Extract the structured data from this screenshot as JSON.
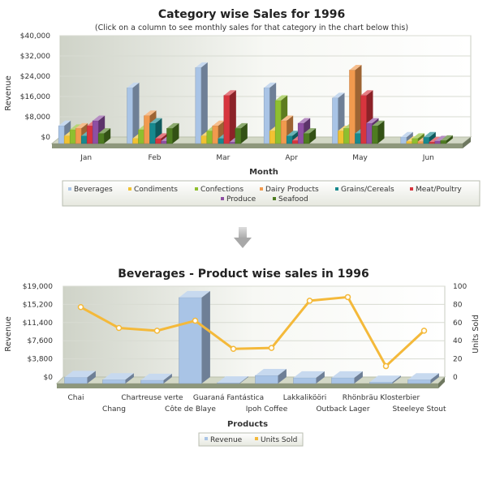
{
  "chart_data": [
    {
      "type": "bar",
      "title": "Category wise Sales for 1996",
      "subtitle": "(Click on a column to see monthly sales for that category in the chart below this)",
      "xlabel": "Month",
      "ylabel": "Revenue",
      "categories": [
        "Jan",
        "Feb",
        "Mar",
        "Apr",
        "May",
        "Jun"
      ],
      "y_ticks": [
        "$0",
        "$8,000",
        "$16,000",
        "$24,000",
        "$32,000",
        "$40,000"
      ],
      "ylim": [
        0,
        40000
      ],
      "legend_position": "bottom",
      "grid": true,
      "series": [
        {
          "name": "Beverages",
          "color": "#a9c4e6",
          "values": [
            7000,
            22000,
            30000,
            22000,
            18000,
            2500
          ]
        },
        {
          "name": "Condiments",
          "color": "#f1c232",
          "values": [
            3000,
            2000,
            3000,
            5000,
            5000,
            800
          ]
        },
        {
          "name": "Confections",
          "color": "#8fbf2f",
          "values": [
            5500,
            5500,
            5000,
            17000,
            6000,
            2000
          ]
        },
        {
          "name": "Dairy Products",
          "color": "#f19a4e",
          "values": [
            6000,
            11000,
            7000,
            9000,
            29000,
            800
          ]
        },
        {
          "name": "Grains/Cereals",
          "color": "#17898e",
          "values": [
            3000,
            8000,
            2000,
            3000,
            4000,
            2500
          ]
        },
        {
          "name": "Meat/Poultry",
          "color": "#d7353e",
          "values": [
            7000,
            2000,
            19000,
            1200,
            19000,
            600
          ]
        },
        {
          "name": "Produce",
          "color": "#8e4fa3",
          "values": [
            9000,
            1000,
            600,
            8000,
            8000,
            1000
          ]
        },
        {
          "name": "Seafood",
          "color": "#4e7c21",
          "values": [
            4000,
            6000,
            6000,
            4000,
            7000,
            1200
          ]
        }
      ]
    },
    {
      "type": "bar",
      "title": "Beverages - Product wise sales in 1996",
      "xlabel": "Products",
      "ylabel": "Revenue",
      "y2label": "Units Sold",
      "categories": [
        "Chai",
        "Chang",
        "Chartreuse verte",
        "Côte de Blaye",
        "Guaraná Fantástica",
        "Ipoh Coffee",
        "Lakkalikööri",
        "Outback Lager",
        "Rhönbräu Klosterbier",
        "Steeleye Stout"
      ],
      "y_ticks": [
        "$0",
        "$3,800",
        "$7,600",
        "$11,400",
        "$15,200",
        "$19,000"
      ],
      "ylim": [
        0,
        19000
      ],
      "y2_ticks": [
        "0",
        "20",
        "40",
        "60",
        "80",
        "100"
      ],
      "y2lim": [
        0,
        100
      ],
      "legend_position": "bottom",
      "grid": true,
      "series": [
        {
          "name": "Revenue",
          "kind": "bar",
          "color": "#a9c4e6",
          "values": [
            1300,
            800,
            700,
            18000,
            150,
            1700,
            1200,
            1200,
            300,
            800
          ]
        },
        {
          "name": "Units Sold",
          "kind": "line",
          "color": "#f4b93a",
          "values": [
            77,
            54,
            51,
            62,
            31,
            32,
            84,
            88,
            12,
            51
          ]
        }
      ]
    }
  ],
  "arrow_icon": "down-arrow-icon"
}
